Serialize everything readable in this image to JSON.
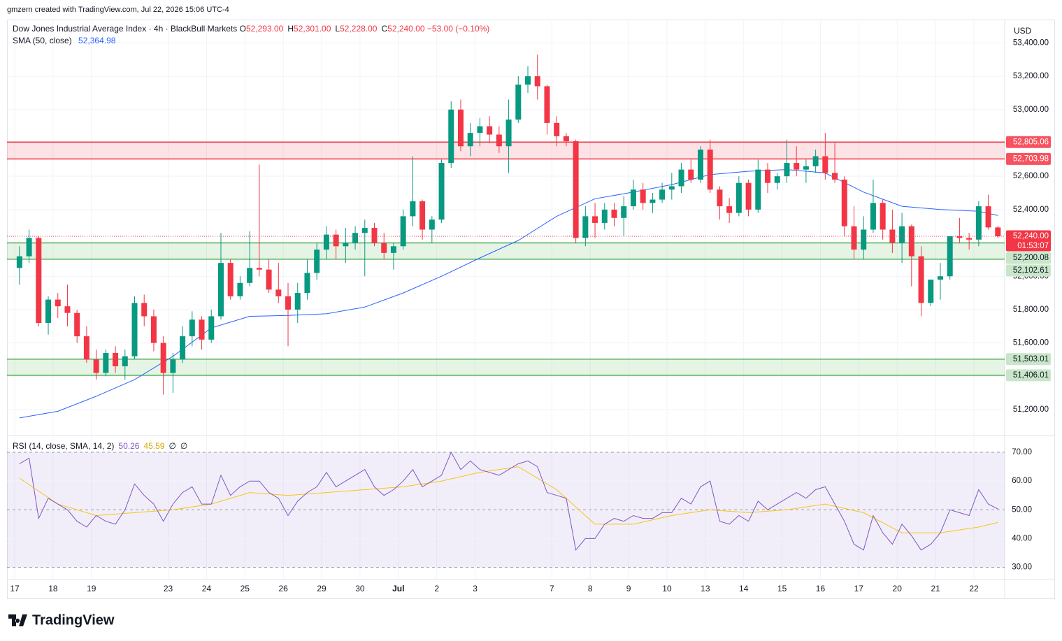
{
  "header": {
    "credit": "gmzern created with TradingView.com, Jul 22, 2026 15:06 UTC-4",
    "currency": "USD",
    "footer": "TradingView",
    "legend": {
      "symbol": "Dow Jones Industrial Average Index · 4h · BlackBull Markets",
      "fields": [
        {
          "key": "O",
          "value": "52,293.00"
        },
        {
          "key": "H",
          "value": "52,301.00"
        },
        {
          "key": "L",
          "value": "52,228.00"
        },
        {
          "key": "C",
          "value": "52,240.00"
        }
      ],
      "change": "−53.00 (−0.10%)"
    }
  },
  "chart_data": {
    "type": "candlestick",
    "up_color": "#089981",
    "down_color": "#f23645",
    "grid": true,
    "ylim": [
      51049,
      53540
    ],
    "yticks": [
      {
        "value": 51200,
        "label": "51,200.00"
      },
      {
        "value": 51400,
        "label": "51,400.00"
      },
      {
        "value": 51600,
        "label": "51,600.00"
      },
      {
        "value": 51800,
        "label": "51,800.00"
      },
      {
        "value": 52000,
        "label": "52,000.00"
      },
      {
        "value": 52200,
        "label": "52,200.00"
      },
      {
        "value": 52400,
        "label": "52,400.00"
      },
      {
        "value": 52600,
        "label": "52,600.00"
      },
      {
        "value": 52800,
        "label": "52,800.00"
      },
      {
        "value": 53000,
        "label": "53,000.00"
      },
      {
        "value": 53200,
        "label": "53,200.00"
      },
      {
        "value": 53400,
        "label": "53,400.00"
      }
    ],
    "categories": [
      "17",
      null,
      null,
      null,
      "18",
      null,
      null,
      null,
      "19",
      null,
      null,
      null,
      null,
      null,
      null,
      null,
      "23",
      null,
      null,
      null,
      "24",
      null,
      null,
      null,
      "25",
      null,
      null,
      null,
      "26",
      null,
      null,
      null,
      "29",
      null,
      null,
      null,
      "30",
      null,
      null,
      null,
      "Jul",
      null,
      null,
      null,
      "2",
      null,
      null,
      null,
      "3",
      null,
      null,
      null,
      null,
      null,
      null,
      null,
      "7",
      null,
      null,
      null,
      "8",
      null,
      null,
      null,
      "9",
      null,
      null,
      null,
      "10",
      null,
      null,
      null,
      "13",
      null,
      null,
      null,
      "14",
      null,
      null,
      null,
      "15",
      null,
      null,
      null,
      "16",
      null,
      null,
      null,
      "17",
      null,
      null,
      null,
      "20",
      null,
      null,
      null,
      "21",
      null,
      null,
      null,
      "22",
      null,
      null
    ],
    "ohlc": [
      [
        52050,
        52180,
        51950,
        52120
      ],
      [
        52120,
        52280,
        52080,
        52230
      ],
      [
        52230,
        52240,
        51700,
        51720
      ],
      [
        51720,
        51880,
        51650,
        51860
      ],
      [
        51860,
        51900,
        51750,
        51820
      ],
      [
        51820,
        51950,
        51700,
        51780
      ],
      [
        51780,
        51800,
        51600,
        51640
      ],
      [
        51640,
        51700,
        51480,
        51500
      ],
      [
        51500,
        51560,
        51380,
        51420
      ],
      [
        51420,
        51560,
        51400,
        51540
      ],
      [
        51540,
        51580,
        51420,
        51460
      ],
      [
        51460,
        51560,
        51380,
        51520
      ],
      [
        51520,
        51880,
        51500,
        51840
      ],
      [
        51840,
        51890,
        51700,
        51760
      ],
      [
        51760,
        51800,
        51550,
        51600
      ],
      [
        51600,
        51640,
        51290,
        51420
      ],
      [
        51420,
        51540,
        51300,
        51500
      ],
      [
        51500,
        51700,
        51480,
        51640
      ],
      [
        51640,
        51790,
        51580,
        51740
      ],
      [
        51740,
        51760,
        51560,
        51620
      ],
      [
        51620,
        51800,
        51600,
        51760
      ],
      [
        51760,
        52260,
        51740,
        52080
      ],
      [
        52080,
        52100,
        51860,
        51880
      ],
      [
        51880,
        52000,
        51860,
        51960
      ],
      [
        51960,
        52270,
        51940,
        52050
      ],
      [
        52050,
        52670,
        52000,
        52040
      ],
      [
        52040,
        52100,
        51900,
        51920
      ],
      [
        51920,
        52080,
        51840,
        51880
      ],
      [
        51880,
        51960,
        51580,
        51800
      ],
      [
        51800,
        51960,
        51720,
        51900
      ],
      [
        51900,
        52100,
        51860,
        52020
      ],
      [
        52020,
        52200,
        51980,
        52160
      ],
      [
        52160,
        52300,
        52100,
        52250
      ],
      [
        52250,
        52280,
        52100,
        52180
      ],
      [
        52180,
        52290,
        52080,
        52200
      ],
      [
        52200,
        52300,
        52160,
        52260
      ],
      [
        52260,
        52340,
        52000,
        52290
      ],
      [
        52290,
        52320,
        52180,
        52200
      ],
      [
        52200,
        52260,
        52100,
        52140
      ],
      [
        52140,
        52200,
        52040,
        52180
      ],
      [
        52180,
        52400,
        52160,
        52360
      ],
      [
        52360,
        52720,
        52300,
        52450
      ],
      [
        52450,
        52460,
        52220,
        52280
      ],
      [
        52280,
        52360,
        52200,
        52340
      ],
      [
        52340,
        52700,
        52320,
        52680
      ],
      [
        52680,
        53050,
        52650,
        53000
      ],
      [
        53000,
        53060,
        52750,
        52780
      ],
      [
        52780,
        52920,
        52720,
        52860
      ],
      [
        52860,
        52950,
        52780,
        52900
      ],
      [
        52900,
        52960,
        52800,
        52850
      ],
      [
        52850,
        52900,
        52740,
        52780
      ],
      [
        52780,
        53060,
        52620,
        52940
      ],
      [
        52940,
        53200,
        52920,
        53150
      ],
      [
        53150,
        53260,
        53100,
        53200
      ],
      [
        53200,
        53330,
        53060,
        53140
      ],
      [
        53140,
        53150,
        52850,
        52920
      ],
      [
        52920,
        52960,
        52780,
        52840
      ],
      [
        52840,
        52860,
        52780,
        52810
      ],
      [
        52810,
        52820,
        52200,
        52230
      ],
      [
        52230,
        52420,
        52180,
        52360
      ],
      [
        52360,
        52440,
        52230,
        52320
      ],
      [
        52320,
        52440,
        52280,
        52400
      ],
      [
        52400,
        52440,
        52300,
        52350
      ],
      [
        52350,
        52480,
        52240,
        52420
      ],
      [
        52420,
        52580,
        52400,
        52520
      ],
      [
        52520,
        52560,
        52400,
        52440
      ],
      [
        52440,
        52500,
        52380,
        52460
      ],
      [
        52460,
        52560,
        52440,
        52520
      ],
      [
        52520,
        52620,
        52460,
        52540
      ],
      [
        52540,
        52680,
        52500,
        52640
      ],
      [
        52640,
        52700,
        52560,
        52580
      ],
      [
        52580,
        52780,
        52560,
        52760
      ],
      [
        52760,
        52820,
        52500,
        52520
      ],
      [
        52520,
        52540,
        52340,
        52420
      ],
      [
        52420,
        52470,
        52320,
        52380
      ],
      [
        52380,
        52600,
        52360,
        52560
      ],
      [
        52560,
        52580,
        52360,
        52400
      ],
      [
        52400,
        52700,
        52380,
        52640
      ],
      [
        52640,
        52680,
        52500,
        52560
      ],
      [
        52560,
        52620,
        52520,
        52600
      ],
      [
        52600,
        52820,
        52560,
        52680
      ],
      [
        52680,
        52780,
        52600,
        52640
      ],
      [
        52640,
        52700,
        52560,
        52660
      ],
      [
        52660,
        52760,
        52620,
        52720
      ],
      [
        52720,
        52860,
        52580,
        52620
      ],
      [
        52620,
        52800,
        52560,
        52580
      ],
      [
        52580,
        52600,
        52240,
        52300
      ],
      [
        52300,
        52420,
        52100,
        52160
      ],
      [
        52160,
        52360,
        52100,
        52280
      ],
      [
        52280,
        52580,
        52260,
        52440
      ],
      [
        52440,
        52460,
        52220,
        52280
      ],
      [
        52280,
        52400,
        52140,
        52200
      ],
      [
        52200,
        52380,
        52080,
        52300
      ],
      [
        52300,
        52310,
        51940,
        52120
      ],
      [
        52120,
        52180,
        51760,
        51840
      ],
      [
        51840,
        51980,
        51820,
        51980
      ],
      [
        51980,
        52080,
        51860,
        52000
      ],
      [
        52000,
        52240,
        51980,
        52240
      ],
      [
        52240,
        52350,
        52200,
        52230
      ],
      [
        52230,
        52260,
        52160,
        52220
      ],
      [
        52220,
        52450,
        52180,
        52420
      ],
      [
        52420,
        52490,
        52280,
        52293
      ],
      [
        52293,
        52301,
        52228,
        52240
      ]
    ],
    "last_price_label": "52,240.00",
    "countdown": "01:53:07",
    "sma": {
      "name": "SMA (50, close)",
      "color": "#2962ff",
      "value_label": "52,364.98",
      "x": [
        0,
        4,
        8,
        12,
        16,
        20,
        24,
        28,
        32,
        36,
        40,
        44,
        48,
        52,
        56,
        60,
        64,
        68,
        72,
        76,
        80,
        84,
        88,
        92,
        96,
        100,
        102
      ],
      "values": [
        51150,
        51190,
        51280,
        51380,
        51520,
        51690,
        51760,
        51765,
        51775,
        51815,
        51900,
        52000,
        52110,
        52215,
        52360,
        52465,
        52505,
        52550,
        52610,
        52630,
        52640,
        52620,
        52505,
        52420,
        52400,
        52390,
        52364.98
      ]
    },
    "zones": [
      {
        "values": [
          52703.98,
          52805.06
        ],
        "value_labels": [
          "52,703.98",
          "52,805.06"
        ],
        "color": "#f23645"
      },
      {
        "values": [
          52102.61,
          52200.08
        ],
        "value_labels": [
          "52,102.61",
          "52,200.08"
        ],
        "color": "#4caf50"
      },
      {
        "values": [
          51406.01,
          51503.01
        ],
        "value_labels": [
          "51,406.01",
          "51,503.01"
        ],
        "color": "#4caf50"
      }
    ],
    "rsi": {
      "name": "RSI (14, close, SMA, 14, 2)",
      "color": "#7e57c2",
      "value_label": "50.26",
      "extra": [
        "∅",
        "∅"
      ],
      "ylim": [
        26,
        75.6
      ],
      "yticks": [
        {
          "value": 30,
          "label": "30.00"
        },
        {
          "value": 40,
          "label": "40.00"
        },
        {
          "value": 50,
          "label": "50.00"
        },
        {
          "value": 60,
          "label": "60.00"
        },
        {
          "value": 70,
          "label": "70.00"
        }
      ],
      "band": [
        30,
        70
      ],
      "hlines": [
        30,
        50,
        70
      ],
      "values": [
        66,
        68,
        47,
        54,
        52,
        50,
        46,
        44,
        48,
        46,
        45,
        50,
        59,
        55,
        52,
        46,
        52,
        56,
        58,
        52,
        52,
        62,
        55,
        58,
        60,
        60,
        56,
        54,
        48,
        53,
        56,
        58,
        63,
        58,
        60,
        62,
        64,
        58,
        55,
        57,
        60,
        64,
        58,
        60,
        62,
        70,
        64,
        67,
        64,
        63,
        62,
        64,
        66,
        67,
        65,
        56,
        55,
        54,
        36,
        40,
        40,
        45,
        47,
        46,
        48,
        47,
        47,
        49,
        49,
        54,
        52,
        58,
        60,
        46,
        45,
        48,
        46,
        53,
        50,
        52,
        54,
        56,
        54,
        57,
        58,
        52,
        46,
        38,
        36,
        48,
        42,
        38,
        45,
        41,
        36,
        38,
        42,
        50,
        49,
        48,
        57,
        52,
        50.26
      ],
      "ma": {
        "color": "#f5c518",
        "value_label": "45.59",
        "x": [
          0,
          4,
          8,
          12,
          16,
          20,
          24,
          28,
          32,
          36,
          40,
          44,
          48,
          52,
          56,
          60,
          64,
          68,
          72,
          76,
          80,
          84,
          88,
          92,
          96,
          100,
          102
        ],
        "values": [
          61,
          52,
          48,
          49,
          50,
          52,
          56,
          55,
          56,
          57,
          58,
          60,
          63,
          65,
          57,
          45,
          45,
          48,
          50,
          49,
          50,
          52,
          49,
          42,
          42,
          44,
          45.59
        ]
      }
    }
  }
}
